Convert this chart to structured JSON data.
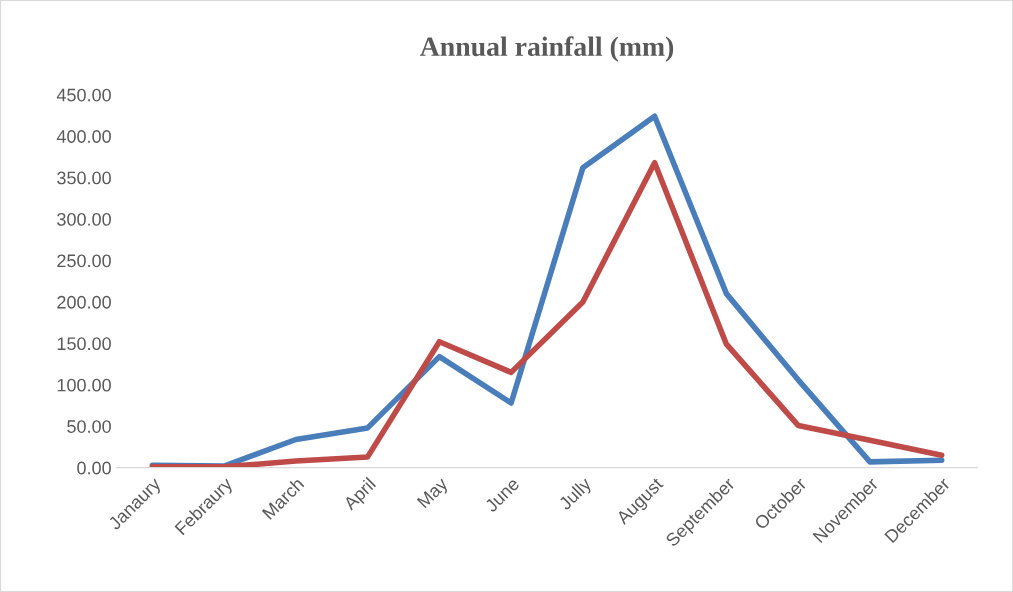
{
  "chart_data": {
    "type": "line",
    "title": "Annual rainfall (mm)",
    "categories": [
      "Janaury",
      "Febraury",
      "March",
      "April",
      "May",
      "June",
      "Jully",
      "August",
      "September",
      "October",
      "November",
      "December"
    ],
    "series": [
      {
        "color": "#4a7ebb",
        "values": [
          3,
          2,
          34,
          48,
          134,
          78,
          362,
          424,
          210,
          106,
          7,
          9
        ]
      },
      {
        "color": "#be4b48",
        "values": [
          1,
          1,
          8,
          13,
          152,
          115,
          200,
          368,
          149,
          51,
          33,
          15
        ]
      }
    ],
    "ylim": [
      0,
      450
    ],
    "yticks": [
      {
        "value": 0,
        "label": "0.00"
      },
      {
        "value": 50,
        "label": "50.00"
      },
      {
        "value": 100,
        "label": "100.00"
      },
      {
        "value": 150,
        "label": "150.00"
      },
      {
        "value": 200,
        "label": "200.00"
      },
      {
        "value": 250,
        "label": "250.00"
      },
      {
        "value": 300,
        "label": "300.00"
      },
      {
        "value": 350,
        "label": "350.00"
      },
      {
        "value": 400,
        "label": "400.00"
      },
      {
        "value": 450,
        "label": "450.00"
      }
    ],
    "grid": false,
    "marker": "none",
    "line_style": "solid"
  }
}
